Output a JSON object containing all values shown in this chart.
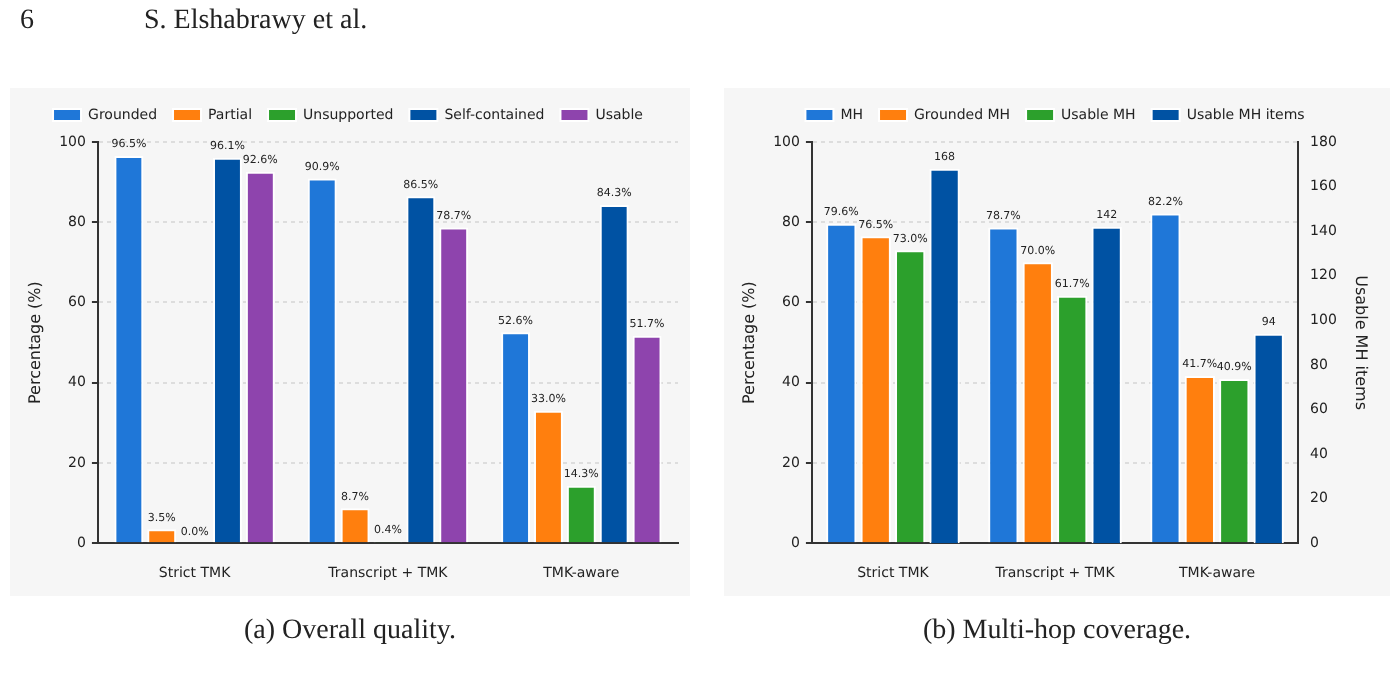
{
  "chart_data": [
    {
      "type": "bar",
      "categories": [
        "Strict TMK",
        "Transcript + TMK",
        "TMK-aware"
      ],
      "ylabel": "Percentage (%)",
      "ylim": [
        0,
        100
      ],
      "yticks": [
        0,
        20,
        40,
        60,
        80,
        100
      ],
      "grid": "y",
      "legend": "top",
      "series": [
        {
          "name": "Grounded",
          "color": "#1f77d8",
          "values": [
            96.5,
            90.9,
            52.6
          ],
          "value_labels": [
            "96.5%",
            "90.9%",
            "52.6%"
          ]
        },
        {
          "name": "Partial",
          "color": "#ff7f0e",
          "values": [
            3.5,
            8.7,
            33.0
          ],
          "value_labels": [
            "3.5%",
            "8.7%",
            "33.0%"
          ]
        },
        {
          "name": "Unsupported",
          "color": "#2ca02c",
          "values": [
            0.0,
            0.4,
            14.3
          ],
          "value_labels": [
            "0.0%",
            "0.4%",
            "14.3%"
          ]
        },
        {
          "name": "Self-contained",
          "color": "#0052a3",
          "values": [
            96.1,
            86.5,
            84.3
          ],
          "value_labels": [
            "96.1%",
            "86.5%",
            "84.3%"
          ]
        },
        {
          "name": "Usable",
          "color": "#8e44ad",
          "values": [
            92.6,
            78.7,
            51.7
          ],
          "value_labels": [
            "92.6%",
            "78.7%",
            "51.7%"
          ]
        }
      ],
      "annotations": [
        "6",
        "S. Elshabrawy et al.",
        "(a) Overall quality."
      ]
    },
    {
      "type": "bar",
      "categories": [
        "Strict TMK",
        "Transcript + TMK",
        "TMK-aware"
      ],
      "ylabel": "Percentage (%)",
      "y2label": "Usable MH items",
      "ylim": [
        0,
        100
      ],
      "yticks": [
        0,
        20,
        40,
        60,
        80,
        100
      ],
      "y2lim": [
        0,
        180
      ],
      "y2ticks": [
        0,
        20,
        40,
        60,
        80,
        100,
        120,
        140,
        160,
        180
      ],
      "grid": "y",
      "legend": "top",
      "series": [
        {
          "name": "MH",
          "color": "#1f77d8",
          "values": [
            79.6,
            78.7,
            82.2
          ],
          "value_labels": [
            "79.6%",
            "78.7%",
            "82.2%"
          ]
        },
        {
          "name": "Grounded MH",
          "color": "#ff7f0e",
          "values": [
            76.5,
            70.0,
            41.7
          ],
          "value_labels": [
            "76.5%",
            "70.0%",
            "41.7%"
          ]
        },
        {
          "name": "Usable MH",
          "color": "#2ca02c",
          "values": [
            73.0,
            61.7,
            40.9
          ],
          "value_labels": [
            "73.0%",
            "61.7%",
            "40.9%"
          ]
        },
        {
          "name": "Usable MH items",
          "color": "#0052a3",
          "axis": "y2",
          "values": [
            168,
            142,
            94
          ],
          "value_labels": [
            "168",
            "142",
            "94"
          ]
        }
      ],
      "annotations": [
        "(b) Multi-hop coverage."
      ]
    }
  ]
}
